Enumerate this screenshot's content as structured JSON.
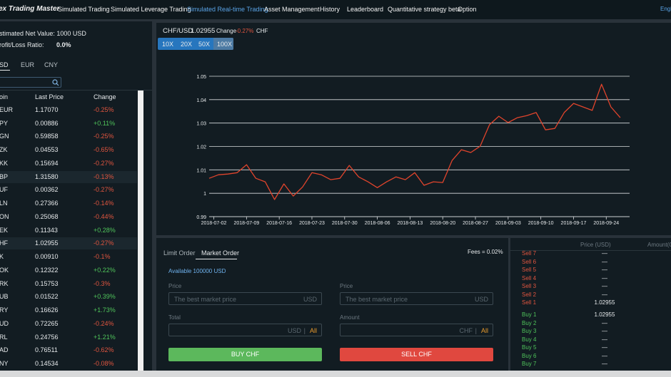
{
  "nav": {
    "brand": "ex Trading Master",
    "items": [
      "Simulated Trading",
      "Simulated Leverage Trading",
      "Simulated Real-time Trading",
      "Asset Management",
      "History",
      "Leaderboard",
      "Quantitative strategy beta",
      "Option"
    ],
    "language": "Engl"
  },
  "account": {
    "net_value": "stimated Net Value: 1000 USD",
    "ratio_label": "rofit/Loss Ratio:",
    "ratio": "0.0%"
  },
  "currency_tabs": [
    "SD",
    "EUR",
    "CNY"
  ],
  "table": {
    "headers": [
      "oin",
      "Last Price",
      "Change"
    ],
    "rows": [
      [
        "EUR",
        "1.17070",
        "-0.25%"
      ],
      [
        "PY",
        "0.00886",
        "+0.11%"
      ],
      [
        "GN",
        "0.59858",
        "-0.25%"
      ],
      [
        "ZK",
        "0.04553",
        "-0.65%"
      ],
      [
        "KK",
        "0.15694",
        "-0.27%"
      ],
      [
        "BP",
        "1.31580",
        "-0.13%"
      ],
      [
        "UF",
        "0.00362",
        "-0.27%"
      ],
      [
        "LN",
        "0.27366",
        "-0.14%"
      ],
      [
        "ON",
        "0.25068",
        "-0.44%"
      ],
      [
        "EK",
        "0.11343",
        "+0.28%"
      ],
      [
        "HF",
        "1.02955",
        "-0.27%"
      ],
      [
        "K",
        "0.00910",
        "-0.1%"
      ],
      [
        "OK",
        "0.12322",
        "+0.22%"
      ],
      [
        "RK",
        "0.15753",
        "-0.3%"
      ],
      [
        "UB",
        "0.01522",
        "+0.39%"
      ],
      [
        "RY",
        "0.16626",
        "+1.73%"
      ],
      [
        "UD",
        "0.72265",
        "-0.24%"
      ],
      [
        "RL",
        "0.24756",
        "+1.21%"
      ],
      [
        "AD",
        "0.76511",
        "-0.62%"
      ],
      [
        "NY",
        "0.14534",
        "-0.08%"
      ]
    ]
  },
  "ticker": {
    "pair": "CHF/USD",
    "price": "1.02955",
    "change_label": "Change",
    "change": "-0.27%",
    "unit": "CHF"
  },
  "leverage": [
    "10X",
    "20X",
    "50X",
    "100X"
  ],
  "chart_data": {
    "type": "line",
    "x": [
      "2018-07-01",
      "2018-07-03",
      "2018-07-05",
      "2018-07-07",
      "2018-07-09",
      "2018-07-11",
      "2018-07-13",
      "2018-07-15",
      "2018-07-17",
      "2018-07-19",
      "2018-07-21",
      "2018-07-23",
      "2018-07-25",
      "2018-07-27",
      "2018-07-29",
      "2018-07-31",
      "2018-08-02",
      "2018-08-04",
      "2018-08-06",
      "2018-08-08",
      "2018-08-10",
      "2018-08-12",
      "2018-08-14",
      "2018-08-16",
      "2018-08-18",
      "2018-08-20",
      "2018-08-22",
      "2018-08-24",
      "2018-08-26",
      "2018-08-28",
      "2018-08-30",
      "2018-09-01",
      "2018-09-03",
      "2018-09-05",
      "2018-09-07",
      "2018-09-09",
      "2018-09-11",
      "2018-09-13",
      "2018-09-15",
      "2018-09-17",
      "2018-09-19",
      "2018-09-21",
      "2018-09-23",
      "2018-09-25",
      "2018-09-27"
    ],
    "values": [
      1.0064,
      1.0079,
      1.0082,
      1.0088,
      1.0122,
      1.0064,
      1.0049,
      0.9973,
      1.004,
      0.9988,
      1.0027,
      1.0088,
      1.0079,
      1.0058,
      1.0064,
      1.0119,
      1.007,
      1.0049,
      1.0024,
      1.0049,
      1.007,
      1.0058,
      1.0088,
      1.0034,
      1.0049,
      1.0046,
      1.014,
      1.0186,
      1.0174,
      1.0201,
      1.0293,
      1.0329,
      1.0302,
      1.0323,
      1.0332,
      1.0345,
      1.0271,
      1.0277,
      1.0345,
      1.0384,
      1.0369,
      1.0354,
      1.0466,
      1.0369,
      1.0323
    ],
    "color": "#e0442c",
    "xlim": [
      "2018-07-01",
      "2018-09-29"
    ],
    "xticks": [
      "2018-07-02",
      "2018-07-09",
      "2018-07-16",
      "2018-07-23",
      "2018-07-30",
      "2018-08-06",
      "2018-08-13",
      "2018-08-20",
      "2018-08-27",
      "2018-09-03",
      "2018-09-10",
      "2018-09-17",
      "2018-09-24"
    ],
    "ylim": [
      0.99,
      1.05
    ],
    "yticks": [
      0.99,
      1,
      1.01,
      1.02,
      1.03,
      1.04,
      1.05
    ],
    "grid": true
  },
  "order": {
    "tabs": [
      "Limit Order",
      "Market Order"
    ],
    "fees": "Fees = 0.02%",
    "available": "Available 100000 USD",
    "buy": {
      "price_label": "Price",
      "placeholder": "The best market price",
      "price_currency": "USD",
      "total_label": "Total",
      "total_currency": "USD",
      "all": "All",
      "button": "BUY CHF"
    },
    "sell": {
      "price_label": "Price",
      "placeholder": "The best market price",
      "price_currency": "USD",
      "amount_label": "Amount",
      "amount_currency": "CHF",
      "all": "All",
      "button": "SELL CHF"
    }
  },
  "book": {
    "headers": [
      "Price (USD)",
      "Amount(C"
    ],
    "sell": [
      [
        "Sell 7",
        "—"
      ],
      [
        "Sell 6",
        "—"
      ],
      [
        "Sell 5",
        "—"
      ],
      [
        "Sell 4",
        "—"
      ],
      [
        "Sell 3",
        "—"
      ],
      [
        "Sell 2",
        "—"
      ],
      [
        "Sell 1",
        "1.02955"
      ]
    ],
    "buy": [
      [
        "Buy 1",
        "1.02955"
      ],
      [
        "Buy 2",
        "—"
      ],
      [
        "Buy 3",
        "—"
      ],
      [
        "Buy 4",
        "—"
      ],
      [
        "Buy 5",
        "—"
      ],
      [
        "Buy 6",
        "—"
      ],
      [
        "Buy 7",
        "—"
      ]
    ]
  }
}
